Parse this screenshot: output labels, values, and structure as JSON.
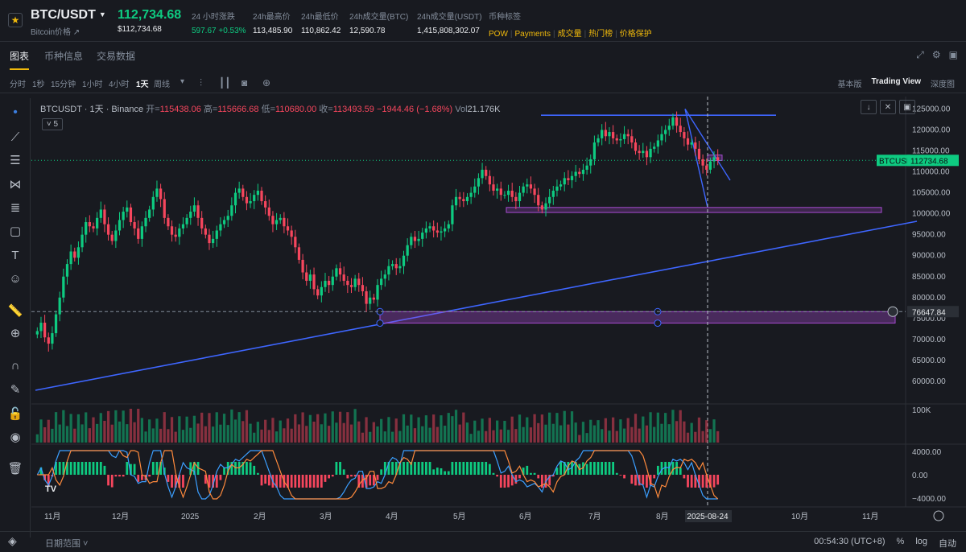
{
  "header": {
    "symbol": "BTC/USDT",
    "subtitle": "Bitcoin价格 ↗",
    "last_price": "112,734.68",
    "last_price_usd": "$112,734.68",
    "stats": [
      {
        "label": "24 小时涨跌",
        "value": "597.67 +0.53%",
        "up": true
      },
      {
        "label": "24h最高价",
        "value": "113,485.90",
        "up": false
      },
      {
        "label": "24h最低价",
        "value": "110,862.42",
        "up": false
      },
      {
        "label": "24h成交量(BTC)",
        "value": "12,590.78",
        "up": false
      },
      {
        "label": "24h成交量(USDT)",
        "value": "1,415,808,302.07",
        "up": false
      }
    ],
    "tags_label": "币种标签",
    "tags": [
      "POW",
      "Payments",
      "成交量",
      "热门榜",
      "价格保护"
    ]
  },
  "tabs": [
    "图表",
    "币种信息",
    "交易数据"
  ],
  "toolbar": {
    "intervals": [
      "分时",
      "1秒",
      "15分钟",
      "1小时",
      "4小时",
      "1天",
      "周线"
    ],
    "active_interval": "1天",
    "views": [
      "基本版",
      "Trading View",
      "深度图"
    ],
    "active_view": "Trading View"
  },
  "legend": {
    "pair": "BTCUSDT · 1天 · Binance",
    "open_label": "开=",
    "open": "115438.06",
    "high_label": "高=",
    "high": "115666.68",
    "low_label": "低=",
    "low": "110680.00",
    "close_label": "收=",
    "close": "113493.59",
    "change": "−1944.46 (−1.68%)",
    "vol_label": "Vol",
    "vol": "21.176K",
    "indicator_count": "5"
  },
  "chart_data": {
    "type": "candlestick",
    "price_axis": {
      "min": 55000,
      "max": 127000,
      "ticks": [
        60000,
        65000,
        70000,
        75000,
        80000,
        85000,
        90000,
        95000,
        100000,
        105000,
        110000,
        115000,
        120000,
        125000
      ]
    },
    "time_axis": {
      "ticks": [
        "11月",
        "12月",
        "2025",
        "2月",
        "3月",
        "4月",
        "5月",
        "6月",
        "7月",
        "8月",
        "2025-08-24",
        "10月",
        "11月"
      ]
    },
    "current_price_label": "BTCUSDT",
    "current_price": "112734.68",
    "crosshair_price": "76647.84",
    "volume_axis_label": "100K",
    "macd_axis": [
      "4000.00",
      "0.00",
      "−4000.00"
    ],
    "closes": [
      72000,
      74000,
      70500,
      69000,
      71500,
      76000,
      80000,
      85000,
      88000,
      91000,
      89500,
      92000,
      95000,
      98000,
      97000,
      96500,
      99000,
      101000,
      97500,
      95000,
      93500,
      96000,
      98500,
      100500,
      101500,
      98000,
      96500,
      94000,
      97000,
      99000,
      101000,
      104000,
      106000,
      103500,
      99000,
      97000,
      95000,
      94500,
      96500,
      97500,
      99000,
      100500,
      102000,
      99000,
      96500,
      95000,
      93000,
      94000,
      96000,
      97500,
      98500,
      99500,
      102000,
      105000,
      106000,
      104000,
      102500,
      103000,
      104500,
      105500,
      103000,
      101500,
      99500,
      97500,
      98500,
      99000,
      97000,
      96000,
      94500,
      92000,
      89000,
      86000,
      84000,
      85500,
      82000,
      80500,
      82500,
      84000,
      83000,
      85000,
      87000,
      85500,
      84000,
      83000,
      82500,
      84500,
      83000,
      81500,
      78500,
      80000,
      79500,
      83000,
      84500,
      85500,
      87500,
      88000,
      87000,
      87500,
      90000,
      92500,
      94500,
      93500,
      94000,
      95500,
      96500,
      97000,
      96000,
      95500,
      95800,
      96500,
      97500,
      102000,
      104000,
      103500,
      103000,
      104000,
      105000,
      106500,
      108500,
      110500,
      109000,
      107000,
      105500,
      106000,
      104500,
      104500,
      105500,
      104000,
      103000,
      105000,
      106500,
      107000,
      106000,
      104500,
      102000,
      101000,
      102500,
      104000,
      105500,
      106500,
      107000,
      108500,
      108000,
      109000,
      110000,
      109500,
      110500,
      111500,
      113000,
      117000,
      118000,
      120000,
      118500,
      119500,
      118000,
      117500,
      117800,
      119000,
      118500,
      117000,
      115000,
      114500,
      115000,
      113500,
      115500,
      116000,
      117500,
      119000,
      120000,
      121000,
      123000,
      121000,
      119500,
      118000,
      116500,
      117000,
      115500,
      113000,
      111500,
      110500,
      112500,
      113493,
      112734
    ],
    "horizontal_levels": [
      {
        "kind": "trendline",
        "from_price": 123500,
        "to_price": 123500
      },
      {
        "kind": "zone",
        "top": 101500,
        "bottom": 100300
      },
      {
        "kind": "zone",
        "top": 76647,
        "bottom": 73900
      },
      {
        "kind": "zone",
        "top": 114000,
        "bottom": 112700
      }
    ]
  },
  "bottom": {
    "range_label": "日期范围",
    "time": "00:54:30 (UTC+8)",
    "options": [
      "%",
      "log",
      "自动"
    ]
  },
  "colors": {
    "up": "#0ecb81",
    "down": "#f6465d",
    "accent": "#f0b90b",
    "line": "#3e66ff",
    "zone": "#a64bd1"
  }
}
